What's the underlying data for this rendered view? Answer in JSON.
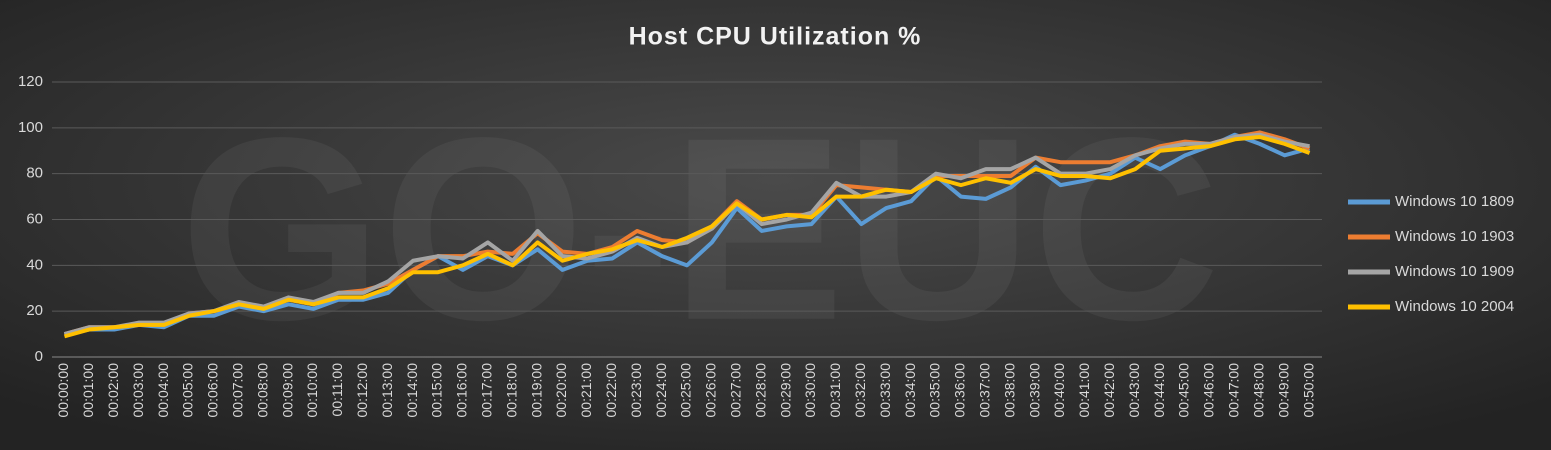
{
  "chart_data": {
    "type": "line",
    "title": "Host CPU Utilization %",
    "watermark": "GO-EUC",
    "categories": [
      "00:00:00",
      "00:01:00",
      "00:02:00",
      "00:03:00",
      "00:04:00",
      "00:05:00",
      "00:06:00",
      "00:07:00",
      "00:08:00",
      "00:09:00",
      "00:10:00",
      "00:11:00",
      "00:12:00",
      "00:13:00",
      "00:14:00",
      "00:15:00",
      "00:16:00",
      "00:17:00",
      "00:18:00",
      "00:19:00",
      "00:20:00",
      "00:21:00",
      "00:22:00",
      "00:23:00",
      "00:24:00",
      "00:25:00",
      "00:26:00",
      "00:27:00",
      "00:28:00",
      "00:29:00",
      "00:30:00",
      "00:31:00",
      "00:32:00",
      "00:33:00",
      "00:34:00",
      "00:35:00",
      "00:36:00",
      "00:37:00",
      "00:38:00",
      "00:39:00",
      "00:40:00",
      "00:41:00",
      "00:42:00",
      "00:43:00",
      "00:44:00",
      "00:45:00",
      "00:46:00",
      "00:47:00",
      "00:48:00",
      "00:49:00",
      "00:50:00"
    ],
    "series": [
      {
        "name": "Windows 10 1809",
        "color": "#5b9bd5",
        "values": [
          10,
          12,
          12,
          14,
          13,
          18,
          18,
          22,
          20,
          23,
          21,
          25,
          25,
          28,
          38,
          44,
          38,
          44,
          40,
          47,
          38,
          42,
          43,
          50,
          44,
          40,
          50,
          65,
          55,
          57,
          58,
          70,
          58,
          65,
          68,
          79,
          70,
          69,
          74,
          83,
          75,
          77,
          80,
          87,
          82,
          88,
          92,
          97,
          93,
          88,
          91
        ]
      },
      {
        "name": "Windows 10 1903",
        "color": "#ed7d31",
        "values": [
          10,
          13,
          13,
          14,
          14,
          19,
          20,
          23,
          22,
          25,
          23,
          28,
          29,
          32,
          38,
          44,
          44,
          46,
          45,
          54,
          46,
          45,
          48,
          55,
          51,
          50,
          57,
          68,
          60,
          62,
          62,
          75,
          74,
          73,
          72,
          79,
          79,
          79,
          79,
          87,
          85,
          85,
          85,
          88,
          92,
          94,
          93,
          96,
          98,
          95,
          91
        ]
      },
      {
        "name": "Windows 10 1909",
        "color": "#a5a5a5",
        "values": [
          10,
          13,
          13,
          15,
          15,
          19,
          20,
          24,
          22,
          26,
          24,
          28,
          28,
          33,
          42,
          44,
          43,
          50,
          42,
          55,
          44,
          43,
          46,
          52,
          48,
          50,
          56,
          67,
          58,
          60,
          63,
          76,
          70,
          70,
          72,
          80,
          78,
          82,
          82,
          87,
          80,
          80,
          82,
          88,
          91,
          93,
          93,
          96,
          97,
          94,
          92
        ]
      },
      {
        "name": "Windows 10 2004",
        "color": "#ffc000",
        "values": [
          9,
          12,
          13,
          14,
          14,
          18,
          20,
          23,
          21,
          25,
          23,
          26,
          26,
          30,
          37,
          37,
          40,
          45,
          40,
          50,
          42,
          45,
          47,
          51,
          48,
          52,
          57,
          67,
          60,
          62,
          61,
          70,
          70,
          73,
          72,
          78,
          75,
          78,
          76,
          82,
          79,
          79,
          78,
          82,
          90,
          91,
          92,
          95,
          96,
          93,
          89
        ]
      }
    ],
    "ylim": [
      0,
      120
    ],
    "yticks": [
      0,
      20,
      40,
      60,
      80,
      100,
      120
    ],
    "legend": "right",
    "grid": true
  }
}
